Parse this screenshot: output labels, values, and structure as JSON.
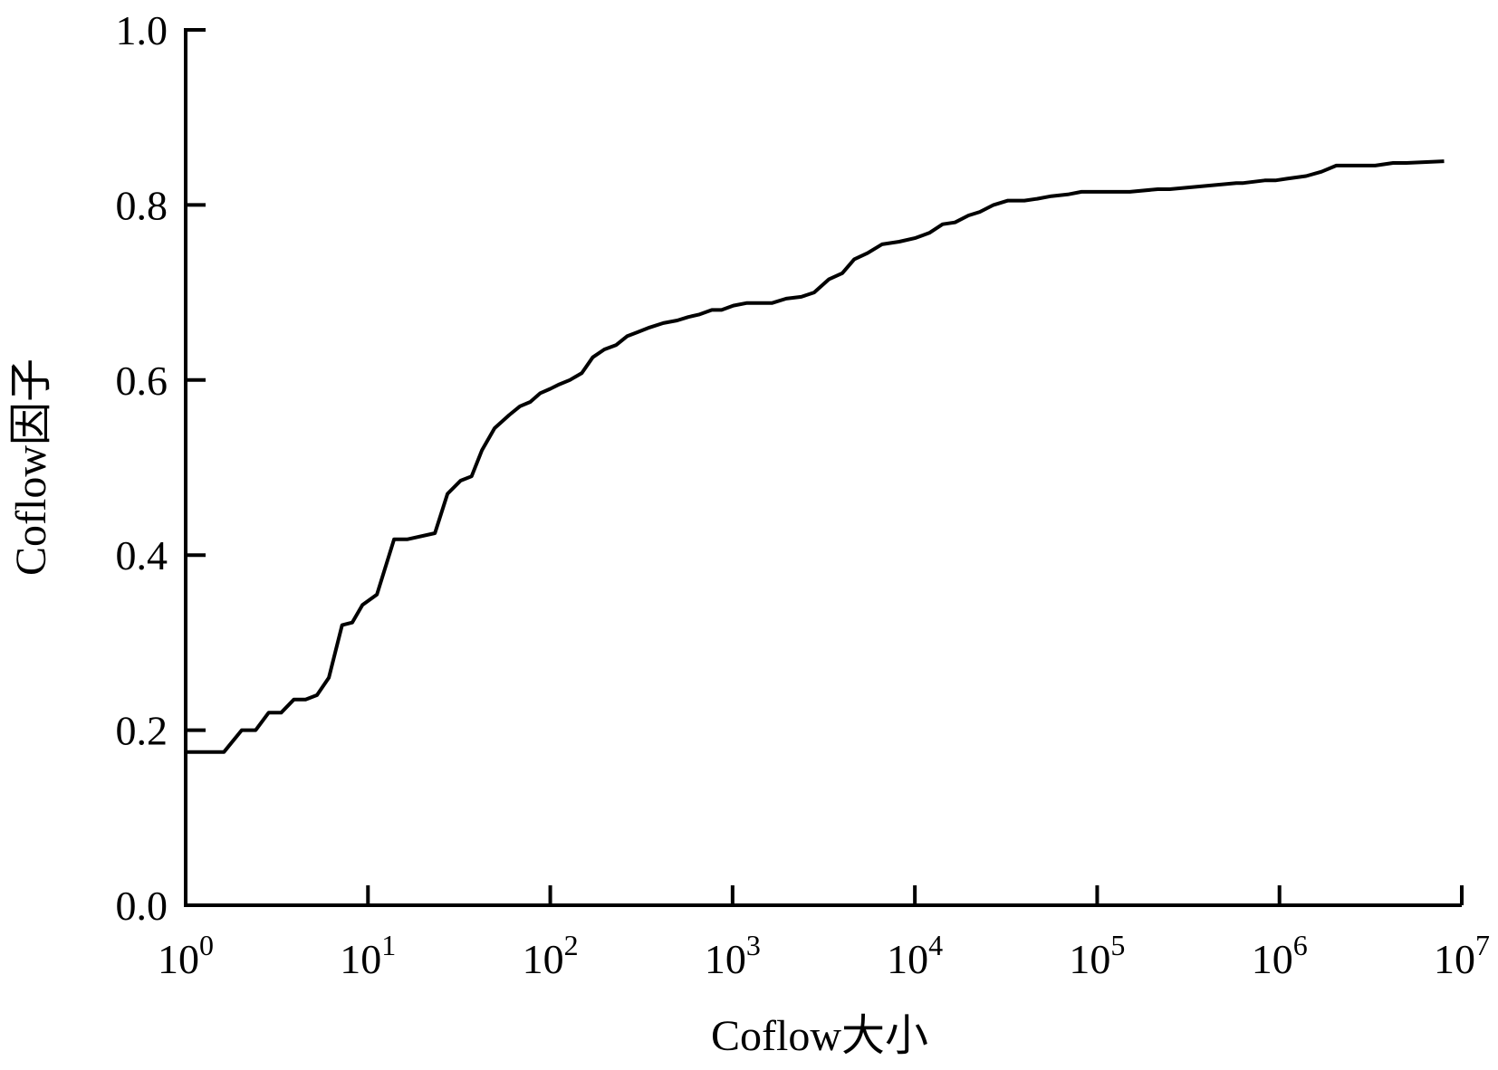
{
  "chart_data": {
    "type": "line",
    "title": "",
    "xlabel": "Coflow大小",
    "ylabel": "Coflow因子",
    "xscale": "log",
    "xlim": [
      1,
      10000000
    ],
    "ylim": [
      0.0,
      1.0
    ],
    "grid": false,
    "legend": "none",
    "line_color": "#000000",
    "x_ticks": [
      {
        "base": "10",
        "exp": "0",
        "value": 1
      },
      {
        "base": "10",
        "exp": "1",
        "value": 10
      },
      {
        "base": "10",
        "exp": "2",
        "value": 100
      },
      {
        "base": "10",
        "exp": "3",
        "value": 1000
      },
      {
        "base": "10",
        "exp": "4",
        "value": 10000
      },
      {
        "base": "10",
        "exp": "5",
        "value": 100000
      },
      {
        "base": "10",
        "exp": "6",
        "value": 1000000
      },
      {
        "base": "10",
        "exp": "7",
        "value": 10000000
      }
    ],
    "y_ticks": [
      {
        "label": "0.0",
        "value": 0.0
      },
      {
        "label": "0.2",
        "value": 0.2
      },
      {
        "label": "0.4",
        "value": 0.4
      },
      {
        "label": "0.6",
        "value": 0.6
      },
      {
        "label": "0.8",
        "value": 0.8
      },
      {
        "label": "1.0",
        "value": 1.0
      }
    ],
    "series": [
      {
        "x": [
          1.02,
          1.62,
          2.03,
          2.42,
          2.85,
          3.34,
          3.92,
          4.55,
          5.25,
          6.1,
          7.21,
          8.2,
          9.33,
          11.2,
          13.9,
          16.4,
          23.3,
          27.3,
          32.2,
          37.0,
          42.2,
          49.5,
          59.5,
          68.2,
          77.7,
          88.2,
          100,
          112,
          128,
          149,
          171,
          198,
          230,
          264,
          304,
          350,
          417,
          497,
          572,
          660,
          770,
          870,
          1010,
          1200,
          1650,
          1970,
          2380,
          2800,
          3370,
          4000,
          4650,
          5500,
          6600,
          8200,
          10000,
          12000,
          14200,
          16600,
          19700,
          22700,
          27000,
          32400,
          39900,
          46800,
          56000,
          69000,
          82000,
          98000,
          151000,
          215000,
          250000,
          580000,
          632000,
          830000,
          950000,
          1100000,
          1400000,
          1700000,
          2050000,
          3350000,
          4200000,
          4970000,
          8000000
        ],
        "y": [
          0.175,
          0.175,
          0.2,
          0.2,
          0.22,
          0.22,
          0.235,
          0.235,
          0.24,
          0.26,
          0.32,
          0.323,
          0.343,
          0.355,
          0.418,
          0.418,
          0.425,
          0.47,
          0.485,
          0.49,
          0.52,
          0.545,
          0.56,
          0.57,
          0.575,
          0.585,
          0.59,
          0.595,
          0.6,
          0.608,
          0.626,
          0.635,
          0.64,
          0.65,
          0.655,
          0.66,
          0.665,
          0.668,
          0.672,
          0.675,
          0.68,
          0.68,
          0.685,
          0.688,
          0.688,
          0.693,
          0.695,
          0.7,
          0.715,
          0.722,
          0.738,
          0.745,
          0.755,
          0.758,
          0.762,
          0.768,
          0.778,
          0.78,
          0.788,
          0.792,
          0.8,
          0.805,
          0.805,
          0.807,
          0.81,
          0.812,
          0.815,
          0.815,
          0.815,
          0.818,
          0.818,
          0.825,
          0.825,
          0.828,
          0.828,
          0.83,
          0.833,
          0.838,
          0.845,
          0.845,
          0.848,
          0.848,
          0.85
        ]
      }
    ]
  }
}
